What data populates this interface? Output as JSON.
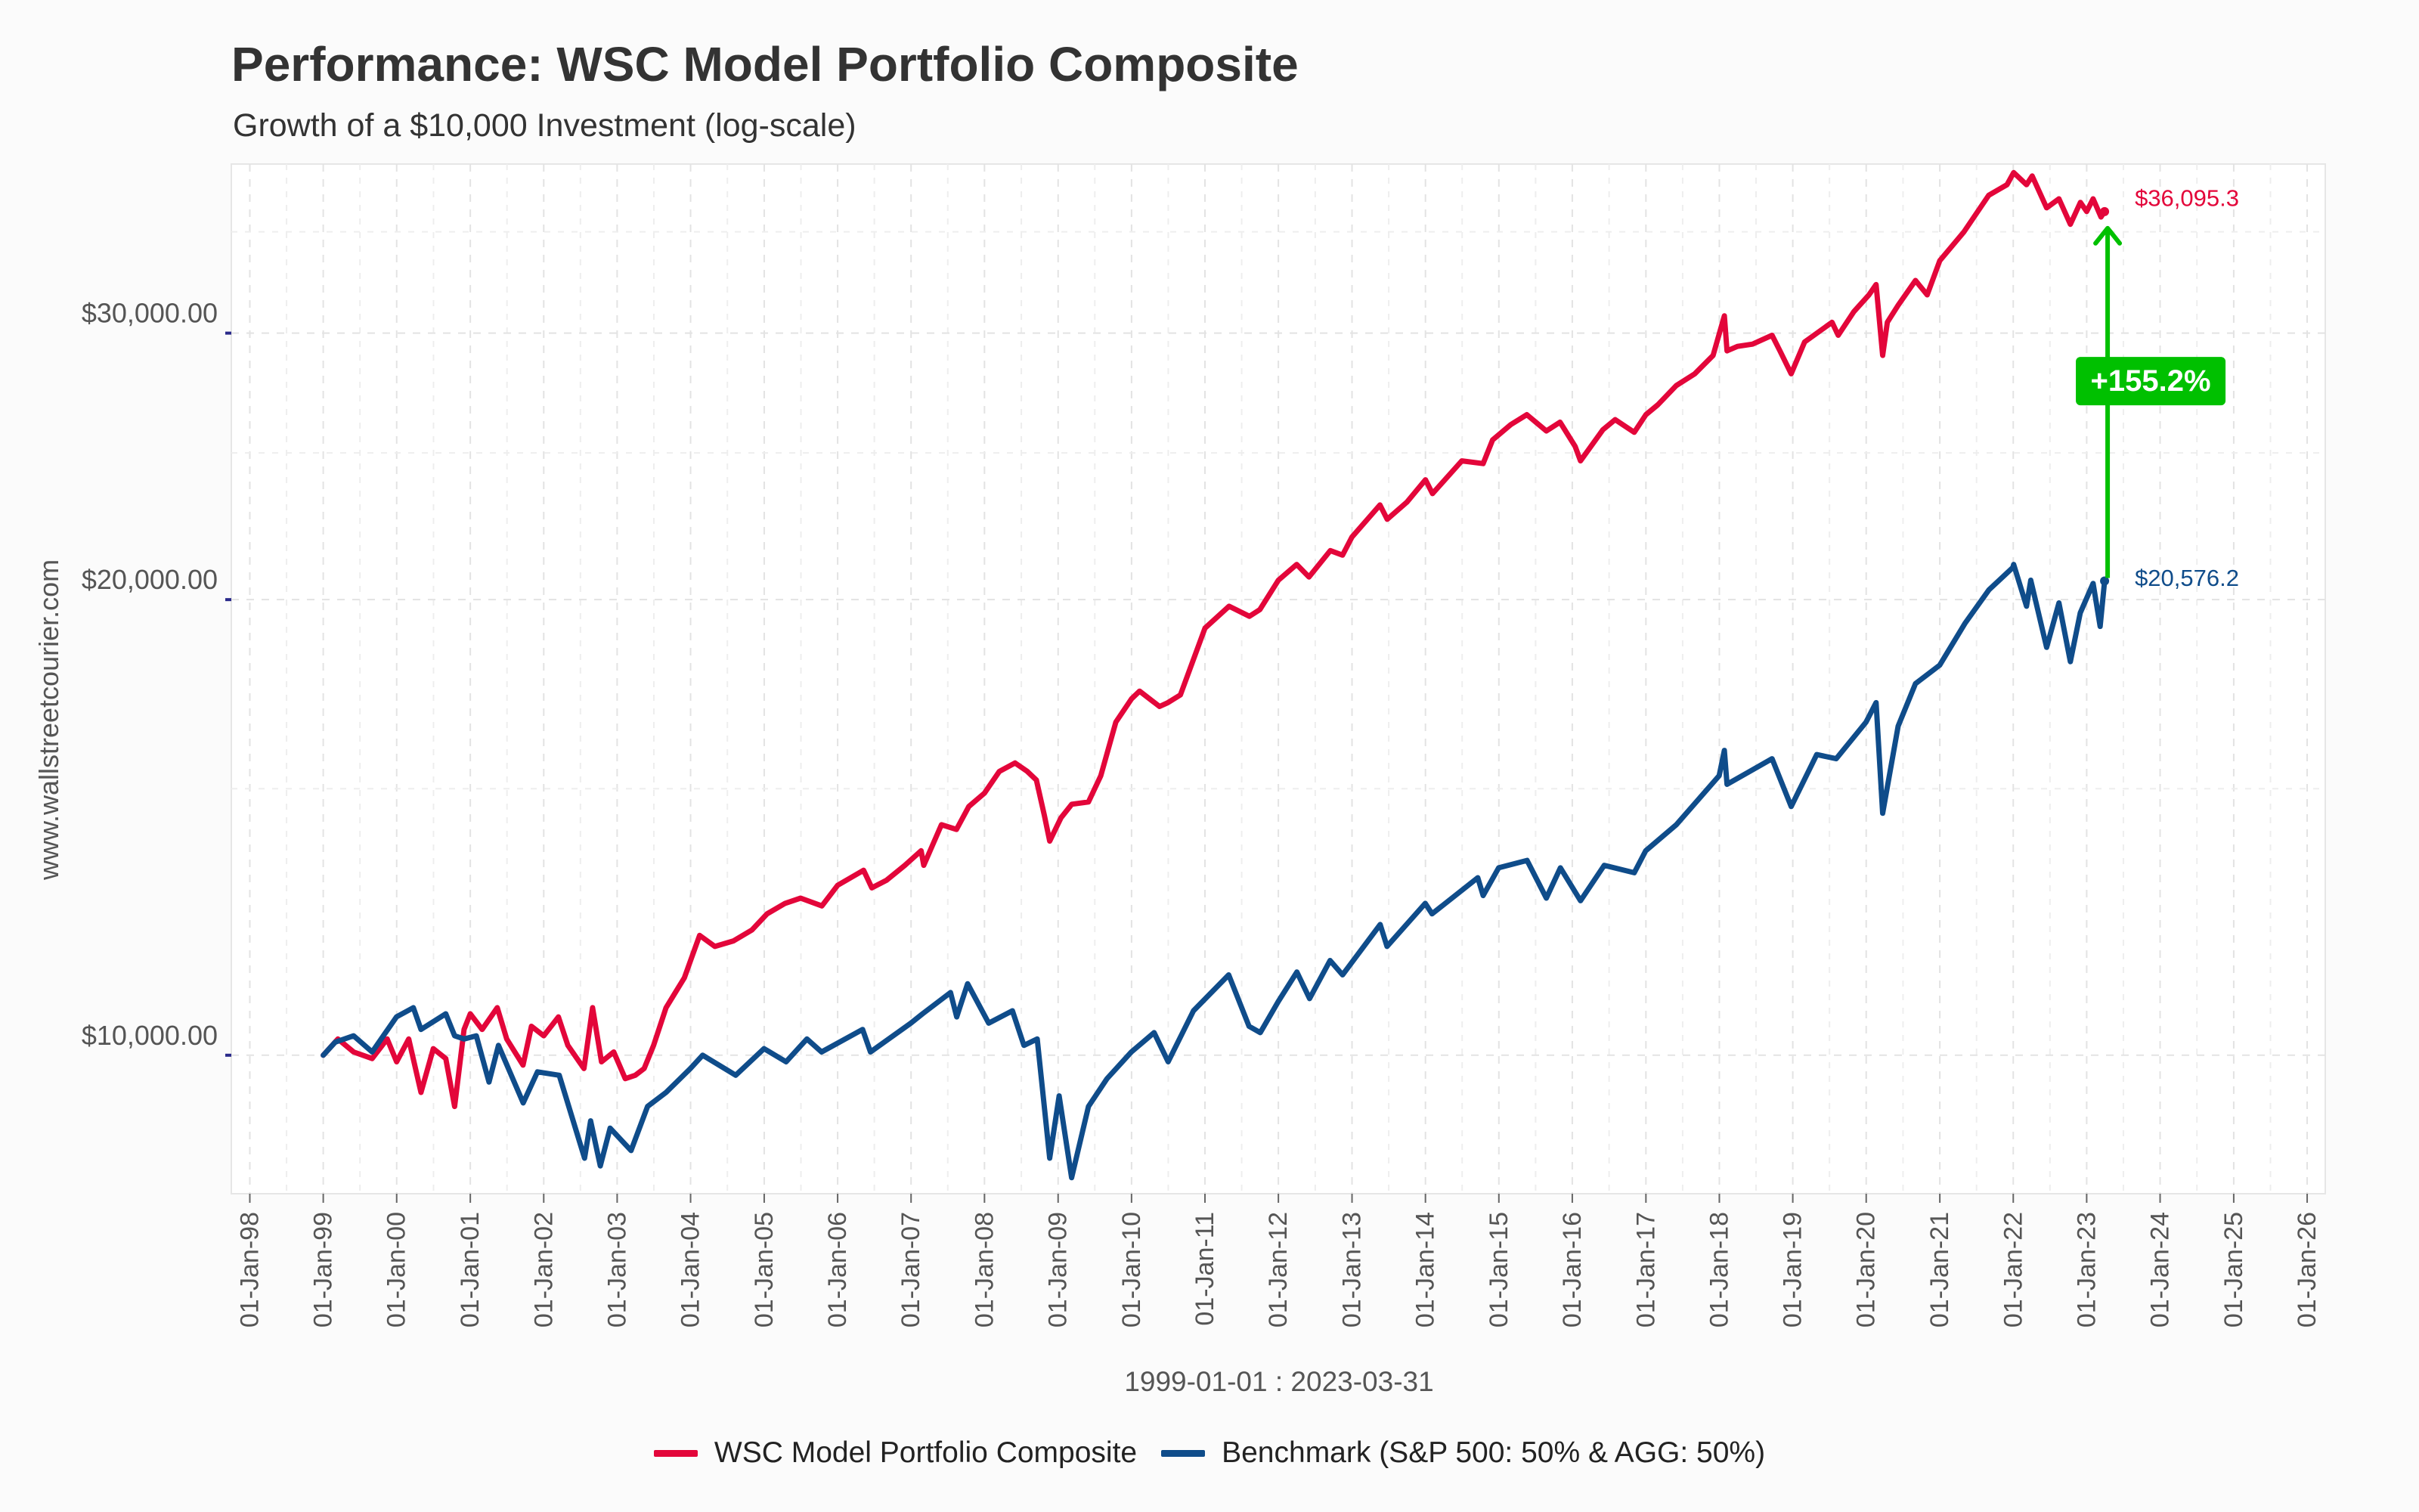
{
  "title": "Performance: WSC Model Portfolio Composite",
  "subtitle": "Growth of a $10,000 Investment (log-scale)",
  "watermark": "www.wallstreetcourier.com",
  "date_range": "1999-01-01 : 2023-03-31",
  "colors": {
    "portfolio": "#e3063a",
    "benchmark": "#0f4c8a",
    "annotation": "#00c000"
  },
  "legend": {
    "portfolio_label": "WSC Model Portfolio Composite",
    "benchmark_label": "Benchmark (S&P 500: 50% & AGG: 50%)"
  },
  "annotation": {
    "outperformance": "+155.2%",
    "portfolio_end_label": "$36,095.3",
    "benchmark_end_label": "$20,576.2"
  },
  "chart_data": {
    "type": "line",
    "title": "Performance: WSC Model Portfolio Composite",
    "subtitle": "Growth of a $10,000 Investment (log-scale)",
    "xlabel": "1999-01-01 : 2023-03-31",
    "ylabel": "",
    "y_scale": "log",
    "xlim": [
      "1997-10-01",
      "2026-04-01"
    ],
    "ylim": [
      8100,
      38800
    ],
    "y_ticks": [
      10000,
      20000,
      30000
    ],
    "y_tick_labels": [
      "$10,000.00",
      "$20,000.00",
      "$30,000.00"
    ],
    "x_ticks": [
      "1998-01-01",
      "1999-01-01",
      "2000-01-01",
      "2001-01-01",
      "2002-01-01",
      "2003-01-01",
      "2004-01-01",
      "2005-01-01",
      "2006-01-01",
      "2007-01-01",
      "2008-01-01",
      "2009-01-01",
      "2010-01-01",
      "2011-01-01",
      "2012-01-01",
      "2013-01-01",
      "2014-01-01",
      "2015-01-01",
      "2016-01-01",
      "2017-01-01",
      "2018-01-01",
      "2019-01-01",
      "2020-01-01",
      "2021-01-01",
      "2022-01-01",
      "2023-01-01",
      "2024-01-01",
      "2025-01-01",
      "2026-01-01"
    ],
    "x_tick_labels": [
      "01-Jan-98",
      "01-Jan-99",
      "01-Jan-00",
      "01-Jan-01",
      "01-Jan-02",
      "01-Jan-03",
      "01-Jan-04",
      "01-Jan-05",
      "01-Jan-06",
      "01-Jan-07",
      "01-Jan-08",
      "01-Jan-09",
      "01-Jan-10",
      "01-Jan-11",
      "01-Jan-12",
      "01-Jan-13",
      "01-Jan-14",
      "01-Jan-15",
      "01-Jan-16",
      "01-Jan-17",
      "01-Jan-18",
      "01-Jan-19",
      "01-Jan-20",
      "01-Jan-21",
      "01-Jan-22",
      "01-Jan-23",
      "01-Jan-24",
      "01-Jan-25",
      "01-Jan-26"
    ],
    "grid": true,
    "legend_position": "bottom",
    "series": [
      {
        "name": "WSC Model Portfolio Composite",
        "points": [
          [
            "1999-01-01",
            10000
          ],
          [
            "1999-03-15",
            10250
          ],
          [
            "1999-06-01",
            10050
          ],
          [
            "1999-09-01",
            9950
          ],
          [
            "1999-11-15",
            10250
          ],
          [
            "2000-01-01",
            9900
          ],
          [
            "2000-03-01",
            10250
          ],
          [
            "2000-05-01",
            9450
          ],
          [
            "2000-07-01",
            10100
          ],
          [
            "2000-09-01",
            9950
          ],
          [
            "2000-10-15",
            9250
          ],
          [
            "2000-12-01",
            10400
          ],
          [
            "2001-01-01",
            10650
          ],
          [
            "2001-03-01",
            10400
          ],
          [
            "2001-05-15",
            10750
          ],
          [
            "2001-07-01",
            10250
          ],
          [
            "2001-09-20",
            9850
          ],
          [
            "2001-11-01",
            10450
          ],
          [
            "2002-01-01",
            10300
          ],
          [
            "2002-03-15",
            10600
          ],
          [
            "2002-05-01",
            10150
          ],
          [
            "2002-07-20",
            9800
          ],
          [
            "2002-09-01",
            10750
          ],
          [
            "2002-10-15",
            9900
          ],
          [
            "2002-12-15",
            10050
          ],
          [
            "2003-02-10",
            9650
          ],
          [
            "2003-04-01",
            9700
          ],
          [
            "2003-05-15",
            9800
          ],
          [
            "2003-07-01",
            10150
          ],
          [
            "2003-09-01",
            10750
          ],
          [
            "2003-12-01",
            11250
          ],
          [
            "2004-02-15",
            12000
          ],
          [
            "2004-05-01",
            11800
          ],
          [
            "2004-08-01",
            11900
          ],
          [
            "2004-11-01",
            12100
          ],
          [
            "2005-01-15",
            12400
          ],
          [
            "2005-04-15",
            12600
          ],
          [
            "2005-07-01",
            12700
          ],
          [
            "2005-10-15",
            12550
          ],
          [
            "2006-01-01",
            12950
          ],
          [
            "2006-05-10",
            13250
          ],
          [
            "2006-06-20",
            12900
          ],
          [
            "2006-09-01",
            13050
          ],
          [
            "2006-12-01",
            13350
          ],
          [
            "2007-02-20",
            13650
          ],
          [
            "2007-03-05",
            13350
          ],
          [
            "2007-06-01",
            14200
          ],
          [
            "2007-08-15",
            14100
          ],
          [
            "2007-10-15",
            14600
          ],
          [
            "2008-01-01",
            14900
          ],
          [
            "2008-03-15",
            15400
          ],
          [
            "2008-06-01",
            15600
          ],
          [
            "2008-08-01",
            15400
          ],
          [
            "2008-09-15",
            15200
          ],
          [
            "2008-10-25",
            14400
          ],
          [
            "2008-11-20",
            13850
          ],
          [
            "2009-01-15",
            14350
          ],
          [
            "2009-03-10",
            14650
          ],
          [
            "2009-06-01",
            14700
          ],
          [
            "2009-08-01",
            15300
          ],
          [
            "2009-10-15",
            16600
          ],
          [
            "2010-01-01",
            17200
          ],
          [
            "2010-02-10",
            17400
          ],
          [
            "2010-05-20",
            17000
          ],
          [
            "2010-07-01",
            17100
          ],
          [
            "2010-09-01",
            17300
          ],
          [
            "2011-01-01",
            19150
          ],
          [
            "2011-05-01",
            19800
          ],
          [
            "2011-08-10",
            19500
          ],
          [
            "2011-10-01",
            19700
          ],
          [
            "2012-01-01",
            20600
          ],
          [
            "2012-04-01",
            21100
          ],
          [
            "2012-06-01",
            20700
          ],
          [
            "2012-09-15",
            21550
          ],
          [
            "2012-11-15",
            21400
          ],
          [
            "2013-01-01",
            22000
          ],
          [
            "2013-05-20",
            23100
          ],
          [
            "2013-06-25",
            22600
          ],
          [
            "2013-10-01",
            23200
          ],
          [
            "2014-01-01",
            24000
          ],
          [
            "2014-02-05",
            23500
          ],
          [
            "2014-07-01",
            24700
          ],
          [
            "2014-10-15",
            24600
          ],
          [
            "2014-12-01",
            25500
          ],
          [
            "2015-03-01",
            26100
          ],
          [
            "2015-05-20",
            26500
          ],
          [
            "2015-08-25",
            25850
          ],
          [
            "2015-11-01",
            26200
          ],
          [
            "2016-01-15",
            25250
          ],
          [
            "2016-02-11",
            24700
          ],
          [
            "2016-06-01",
            25900
          ],
          [
            "2016-08-01",
            26300
          ],
          [
            "2016-11-04",
            25800
          ],
          [
            "2017-01-01",
            26500
          ],
          [
            "2017-03-01",
            26900
          ],
          [
            "2017-06-01",
            27700
          ],
          [
            "2017-09-01",
            28200
          ],
          [
            "2017-12-01",
            29000
          ],
          [
            "2018-01-26",
            30800
          ],
          [
            "2018-02-08",
            29200
          ],
          [
            "2018-04-01",
            29400
          ],
          [
            "2018-06-15",
            29500
          ],
          [
            "2018-09-20",
            29900
          ],
          [
            "2018-10-29",
            29200
          ],
          [
            "2018-12-24",
            28200
          ],
          [
            "2019-03-01",
            29600
          ],
          [
            "2019-07-15",
            30500
          ],
          [
            "2019-08-15",
            29900
          ],
          [
            "2019-11-01",
            31000
          ],
          [
            "2020-01-15",
            31800
          ],
          [
            "2020-02-19",
            32300
          ],
          [
            "2020-03-23",
            29000
          ],
          [
            "2020-04-15",
            30500
          ],
          [
            "2020-06-08",
            31300
          ],
          [
            "2020-09-02",
            32500
          ],
          [
            "2020-10-30",
            31800
          ],
          [
            "2021-01-01",
            33500
          ],
          [
            "2021-05-01",
            35000
          ],
          [
            "2021-09-01",
            37000
          ],
          [
            "2021-12-01",
            37600
          ],
          [
            "2022-01-03",
            38300
          ],
          [
            "2022-03-08",
            37600
          ],
          [
            "2022-04-05",
            38100
          ],
          [
            "2022-06-16",
            36300
          ],
          [
            "2022-08-16",
            36800
          ],
          [
            "2022-10-12",
            35400
          ],
          [
            "2022-12-01",
            36600
          ],
          [
            "2023-01-01",
            36100
          ],
          [
            "2023-02-02",
            36800
          ],
          [
            "2023-03-13",
            35800
          ],
          [
            "2023-03-31",
            36095.3
          ]
        ]
      },
      {
        "name": "Benchmark (S&P 500: 50% & AGG: 50%)",
        "points": [
          [
            "1999-01-01",
            10000
          ],
          [
            "1999-03-01",
            10200
          ],
          [
            "1999-06-01",
            10300
          ],
          [
            "1999-09-01",
            10050
          ],
          [
            "1999-12-31",
            10600
          ],
          [
            "2000-03-24",
            10750
          ],
          [
            "2000-05-01",
            10400
          ],
          [
            "2000-09-01",
            10650
          ],
          [
            "2000-10-15",
            10300
          ],
          [
            "2000-12-01",
            10250
          ],
          [
            "2001-01-31",
            10300
          ],
          [
            "2001-04-04",
            9600
          ],
          [
            "2001-05-21",
            10150
          ],
          [
            "2001-09-21",
            9300
          ],
          [
            "2001-12-01",
            9750
          ],
          [
            "2002-03-19",
            9700
          ],
          [
            "2002-07-23",
            8550
          ],
          [
            "2002-08-22",
            9050
          ],
          [
            "2002-10-09",
            8450
          ],
          [
            "2002-11-27",
            8950
          ],
          [
            "2003-03-11",
            8650
          ],
          [
            "2003-06-01",
            9250
          ],
          [
            "2003-09-01",
            9450
          ],
          [
            "2003-12-31",
            9800
          ],
          [
            "2004-03-01",
            10000
          ],
          [
            "2004-08-12",
            9700
          ],
          [
            "2004-12-31",
            10100
          ],
          [
            "2005-04-20",
            9900
          ],
          [
            "2005-08-01",
            10250
          ],
          [
            "2005-10-13",
            10050
          ],
          [
            "2006-05-05",
            10400
          ],
          [
            "2006-06-13",
            10050
          ],
          [
            "2006-12-31",
            10500
          ],
          [
            "2007-02-27",
            10650
          ],
          [
            "2007-07-16",
            11000
          ],
          [
            "2007-08-16",
            10600
          ],
          [
            "2007-10-09",
            11150
          ],
          [
            "2008-01-22",
            10500
          ],
          [
            "2008-05-19",
            10700
          ],
          [
            "2008-07-15",
            10150
          ],
          [
            "2008-09-19",
            10250
          ],
          [
            "2008-11-20",
            8550
          ],
          [
            "2009-01-06",
            9400
          ],
          [
            "2009-03-09",
            8300
          ],
          [
            "2009-06-01",
            9250
          ],
          [
            "2009-09-01",
            9650
          ],
          [
            "2009-12-31",
            10050
          ],
          [
            "2010-04-23",
            10350
          ],
          [
            "2010-07-02",
            9900
          ],
          [
            "2010-11-05",
            10700
          ],
          [
            "2011-04-29",
            11300
          ],
          [
            "2011-08-08",
            10450
          ],
          [
            "2011-10-03",
            10350
          ],
          [
            "2011-12-31",
            10850
          ],
          [
            "2012-04-02",
            11350
          ],
          [
            "2012-06-04",
            10900
          ],
          [
            "2012-09-14",
            11550
          ],
          [
            "2012-11-15",
            11300
          ],
          [
            "2013-05-21",
            12200
          ],
          [
            "2013-06-24",
            11800
          ],
          [
            "2013-12-31",
            12600
          ],
          [
            "2014-02-03",
            12400
          ],
          [
            "2014-09-18",
            13100
          ],
          [
            "2014-10-15",
            12750
          ],
          [
            "2014-12-31",
            13300
          ],
          [
            "2015-05-21",
            13450
          ],
          [
            "2015-08-25",
            12700
          ],
          [
            "2015-11-03",
            13300
          ],
          [
            "2016-02-11",
            12650
          ],
          [
            "2016-06-08",
            13350
          ],
          [
            "2016-11-04",
            13200
          ],
          [
            "2016-12-31",
            13650
          ],
          [
            "2017-06-01",
            14200
          ],
          [
            "2017-12-31",
            15300
          ],
          [
            "2018-01-26",
            15900
          ],
          [
            "2018-02-08",
            15100
          ],
          [
            "2018-09-20",
            15700
          ],
          [
            "2018-12-24",
            14600
          ],
          [
            "2019-04-30",
            15800
          ],
          [
            "2019-08-05",
            15700
          ],
          [
            "2019-12-31",
            16600
          ],
          [
            "2020-02-19",
            17100
          ],
          [
            "2020-03-23",
            14450
          ],
          [
            "2020-06-08",
            16500
          ],
          [
            "2020-09-02",
            17600
          ],
          [
            "2020-12-31",
            18100
          ],
          [
            "2021-05-07",
            19300
          ],
          [
            "2021-09-02",
            20300
          ],
          [
            "2021-12-30",
            21000
          ],
          [
            "2022-01-03",
            21100
          ],
          [
            "2022-03-08",
            19800
          ],
          [
            "2022-03-29",
            20600
          ],
          [
            "2022-06-16",
            18600
          ],
          [
            "2022-08-16",
            19900
          ],
          [
            "2022-10-12",
            18200
          ],
          [
            "2022-11-30",
            19600
          ],
          [
            "2023-02-02",
            20500
          ],
          [
            "2023-03-09",
            19200
          ],
          [
            "2023-03-31",
            20576.2
          ]
        ]
      }
    ]
  }
}
